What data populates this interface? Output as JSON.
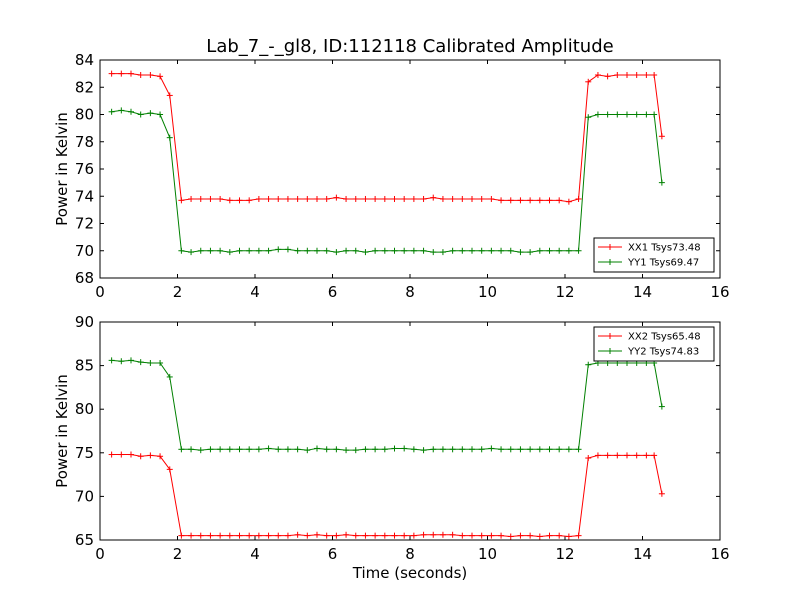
{
  "figure": {
    "title": "Lab_7_-_gl8, ID:112118 Calibrated Amplitude"
  },
  "chart_data": [
    {
      "type": "line",
      "title": "Lab_7_-_gl8, ID:112118 Calibrated Amplitude",
      "xlabel": "",
      "ylabel": "Power in Kelvin",
      "xlim": [
        0,
        16
      ],
      "ylim": [
        68,
        84
      ],
      "xticks": [
        "0",
        "2",
        "4",
        "6",
        "8",
        "10",
        "12",
        "14",
        "16"
      ],
      "yticks": [
        "68",
        "70",
        "72",
        "74",
        "76",
        "78",
        "80",
        "82",
        "84"
      ],
      "grid": false,
      "legend_position": "lower-right",
      "x": [
        0.3,
        0.55,
        0.8,
        1.05,
        1.3,
        1.55,
        1.8,
        2.1,
        2.35,
        2.6,
        2.85,
        3.1,
        3.35,
        3.6,
        3.85,
        4.1,
        4.35,
        4.6,
        4.85,
        5.1,
        5.35,
        5.6,
        5.85,
        6.1,
        6.35,
        6.6,
        6.85,
        7.1,
        7.35,
        7.6,
        7.85,
        8.1,
        8.35,
        8.6,
        8.85,
        9.1,
        9.35,
        9.6,
        9.85,
        10.1,
        10.35,
        10.6,
        10.85,
        11.1,
        11.35,
        11.6,
        11.85,
        12.1,
        12.35,
        12.6,
        12.85,
        13.1,
        13.35,
        13.6,
        13.85,
        14.1,
        14.3,
        14.5
      ],
      "series": [
        {
          "name": "XX1 Tsys73.48",
          "color": "#ff0000",
          "values": [
            83.0,
            83.0,
            83.0,
            82.9,
            82.9,
            82.8,
            81.4,
            73.7,
            73.8,
            73.8,
            73.8,
            73.8,
            73.7,
            73.7,
            73.7,
            73.8,
            73.8,
            73.8,
            73.8,
            73.8,
            73.8,
            73.8,
            73.8,
            73.9,
            73.8,
            73.8,
            73.8,
            73.8,
            73.8,
            73.8,
            73.8,
            73.8,
            73.8,
            73.9,
            73.8,
            73.8,
            73.8,
            73.8,
            73.8,
            73.8,
            73.7,
            73.7,
            73.7,
            73.7,
            73.7,
            73.7,
            73.7,
            73.6,
            73.8,
            82.4,
            82.9,
            82.8,
            82.9,
            82.9,
            82.9,
            82.9,
            82.9,
            78.4
          ]
        },
        {
          "name": "YY1 Tsys69.47",
          "color": "#008000",
          "values": [
            80.2,
            80.3,
            80.2,
            80.0,
            80.1,
            80.0,
            78.3,
            70.0,
            69.9,
            70.0,
            70.0,
            70.0,
            69.9,
            70.0,
            70.0,
            70.0,
            70.0,
            70.1,
            70.1,
            70.0,
            70.0,
            70.0,
            70.0,
            69.9,
            70.0,
            70.0,
            69.9,
            70.0,
            70.0,
            70.0,
            70.0,
            70.0,
            70.0,
            69.9,
            69.9,
            70.0,
            70.0,
            70.0,
            70.0,
            70.0,
            70.0,
            70.0,
            69.9,
            69.9,
            70.0,
            70.0,
            70.0,
            70.0,
            70.0,
            79.8,
            80.0,
            80.0,
            80.0,
            80.0,
            80.0,
            80.0,
            80.0,
            75.0
          ]
        }
      ]
    },
    {
      "type": "line",
      "title": "",
      "xlabel": "Time (seconds)",
      "ylabel": "Power in Kelvin",
      "xlim": [
        0,
        16
      ],
      "ylim": [
        65,
        90
      ],
      "xticks": [
        "0",
        "2",
        "4",
        "6",
        "8",
        "10",
        "12",
        "14",
        "16"
      ],
      "yticks": [
        "65",
        "70",
        "75",
        "80",
        "85",
        "90"
      ],
      "grid": false,
      "legend_position": "top-right",
      "x": [
        0.3,
        0.55,
        0.8,
        1.05,
        1.3,
        1.55,
        1.8,
        2.1,
        2.35,
        2.6,
        2.85,
        3.1,
        3.35,
        3.6,
        3.85,
        4.1,
        4.35,
        4.6,
        4.85,
        5.1,
        5.35,
        5.6,
        5.85,
        6.1,
        6.35,
        6.6,
        6.85,
        7.1,
        7.35,
        7.6,
        7.85,
        8.1,
        8.35,
        8.6,
        8.85,
        9.1,
        9.35,
        9.6,
        9.85,
        10.1,
        10.35,
        10.6,
        10.85,
        11.1,
        11.35,
        11.6,
        11.85,
        12.1,
        12.35,
        12.6,
        12.85,
        13.1,
        13.35,
        13.6,
        13.85,
        14.1,
        14.3,
        14.5
      ],
      "series": [
        {
          "name": "XX2 Tsys65.48",
          "color": "#ff0000",
          "values": [
            74.8,
            74.8,
            74.8,
            74.6,
            74.7,
            74.6,
            73.1,
            65.5,
            65.5,
            65.5,
            65.5,
            65.5,
            65.5,
            65.5,
            65.5,
            65.5,
            65.5,
            65.5,
            65.5,
            65.6,
            65.5,
            65.6,
            65.5,
            65.5,
            65.6,
            65.5,
            65.5,
            65.5,
            65.5,
            65.5,
            65.5,
            65.5,
            65.6,
            65.6,
            65.6,
            65.6,
            65.5,
            65.5,
            65.5,
            65.5,
            65.5,
            65.4,
            65.5,
            65.5,
            65.4,
            65.5,
            65.5,
            65.4,
            65.5,
            74.4,
            74.7,
            74.7,
            74.7,
            74.7,
            74.7,
            74.7,
            74.7,
            70.3
          ]
        },
        {
          "name": "YY2 Tsys74.83",
          "color": "#008000",
          "values": [
            85.6,
            85.5,
            85.6,
            85.4,
            85.3,
            85.3,
            83.7,
            75.4,
            75.4,
            75.3,
            75.4,
            75.4,
            75.4,
            75.4,
            75.4,
            75.4,
            75.5,
            75.4,
            75.4,
            75.4,
            75.3,
            75.5,
            75.4,
            75.4,
            75.3,
            75.3,
            75.4,
            75.4,
            75.4,
            75.5,
            75.5,
            75.4,
            75.3,
            75.4,
            75.4,
            75.4,
            75.4,
            75.4,
            75.4,
            75.5,
            75.4,
            75.4,
            75.4,
            75.4,
            75.4,
            75.4,
            75.4,
            75.4,
            75.4,
            85.1,
            85.3,
            85.3,
            85.3,
            85.3,
            85.3,
            85.3,
            85.3,
            80.3
          ]
        }
      ]
    }
  ]
}
